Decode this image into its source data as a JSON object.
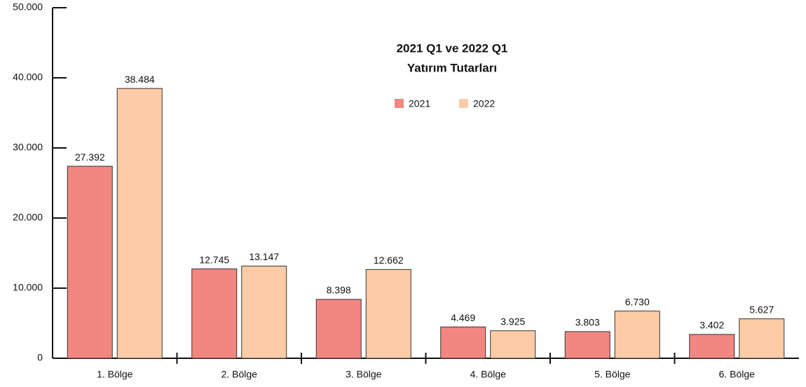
{
  "chart_data": {
    "type": "bar",
    "title": "2021 Q1 ve 2022 Q1",
    "subtitle": "Yatırım Tutarları",
    "categories": [
      "1. Bölge",
      "2. Bölge",
      "3. Bölge",
      "4. Bölge",
      "5. Bölge",
      "6. Bölge"
    ],
    "series": [
      {
        "name": "2021",
        "color": "#f28680",
        "values": [
          27392,
          12745,
          8398,
          4469,
          3803,
          3402
        ],
        "value_labels": [
          "27.392",
          "12.745",
          "8.398",
          "4.469",
          "3.803",
          "3.402"
        ]
      },
      {
        "name": "2022",
        "color": "#fdcba5",
        "values": [
          38484,
          13147,
          12662,
          3925,
          6730,
          5627
        ],
        "value_labels": [
          "38.484",
          "13.147",
          "12.662",
          "3.925",
          "6.730",
          "5.627"
        ]
      }
    ],
    "ylim": [
      0,
      50000
    ],
    "yticks": [
      0,
      {
        "value": 10000,
        "label": "10.000"
      },
      {
        "value": 20000,
        "label": "20.000"
      },
      {
        "value": 30000,
        "label": "30.000"
      },
      {
        "value": 40000,
        "label": "40.000"
      },
      {
        "value": 50000,
        "label": "50.000"
      }
    ],
    "legend": "top"
  }
}
